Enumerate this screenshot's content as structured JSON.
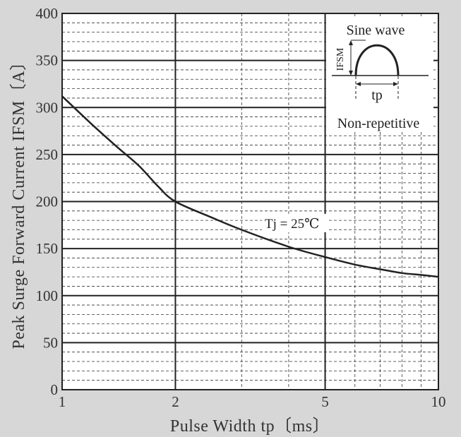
{
  "chart_data": {
    "type": "line",
    "title": "",
    "xlabel": "Pulse Width  tp〔ms〕",
    "ylabel": "Peak Surge Forward Current  IFSM〔A〕",
    "x_scale": "log",
    "xlim": [
      1,
      10
    ],
    "ylim": [
      0,
      400
    ],
    "x_ticks": [
      "1",
      "2",
      "5",
      "10"
    ],
    "y_ticks": [
      "0",
      "50",
      "100",
      "150",
      "200",
      "250",
      "300",
      "350",
      "400"
    ],
    "grid": true,
    "series": [
      {
        "x": [
          1.0,
          1.2,
          1.4,
          1.6,
          1.8,
          2.0,
          2.5,
          3.0,
          4.0,
          5.0,
          6.0,
          7.0,
          8.0,
          9.0,
          10.0
        ],
        "y": [
          312,
          282,
          258,
          238,
          216,
          200,
          183,
          170,
          152,
          141,
          133,
          128,
          124,
          122,
          120
        ]
      }
    ],
    "annotations": {
      "condition": "Tj = 25℃",
      "inset_title": "Sine wave",
      "inset_current": "IFSM",
      "inset_pulse": "tp",
      "inset_note": "Non-repetitive"
    }
  }
}
